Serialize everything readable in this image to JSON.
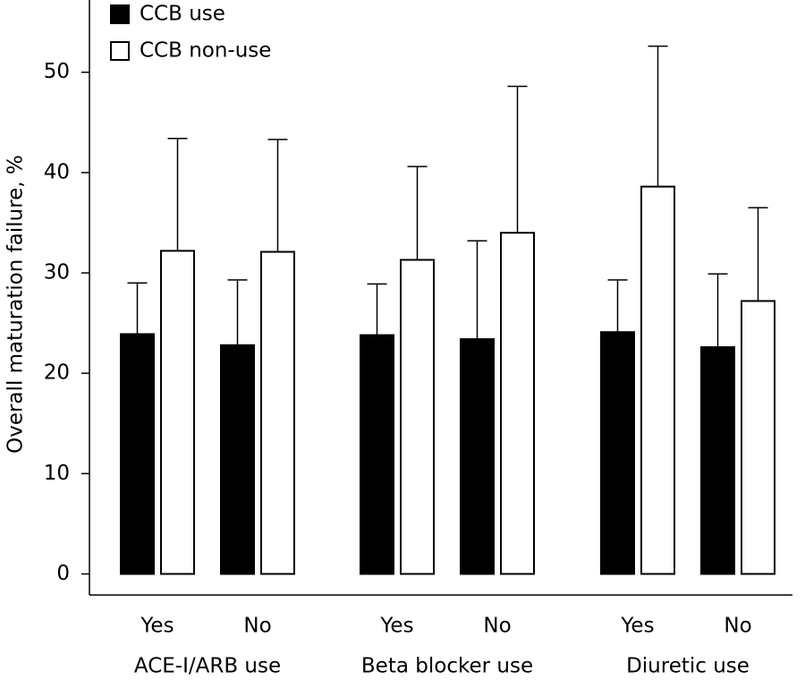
{
  "chart_data": {
    "type": "bar",
    "y_label": "Overall maturation failure, %",
    "categories": [
      "Yes",
      "No",
      "Yes",
      "No",
      "Yes",
      "No"
    ],
    "groups": [
      {
        "label": "ACE-I/ARB use",
        "size": 2
      },
      {
        "label": "Beta blocker use",
        "size": 2
      },
      {
        "label": "Diuretic use",
        "size": 2
      }
    ],
    "series": [
      {
        "name": "CCB use",
        "color": "#000000",
        "values": [
          23.9,
          22.8,
          23.8,
          23.4,
          24.1,
          22.6
        ],
        "errors": [
          5.1,
          6.5,
          5.1,
          9.8,
          5.2,
          7.3
        ]
      },
      {
        "name": "CCB non-use",
        "color": "#ffffff",
        "values": [
          32.2,
          32.1,
          31.3,
          34.0,
          38.6,
          27.2
        ],
        "errors": [
          11.2,
          11.2,
          9.3,
          14.6,
          14.0,
          9.3
        ]
      }
    ],
    "ylim": [
      -2.1,
      57.2
    ],
    "yticks": [
      0,
      10,
      20,
      30,
      40,
      50
    ],
    "legend": "upper left"
  }
}
